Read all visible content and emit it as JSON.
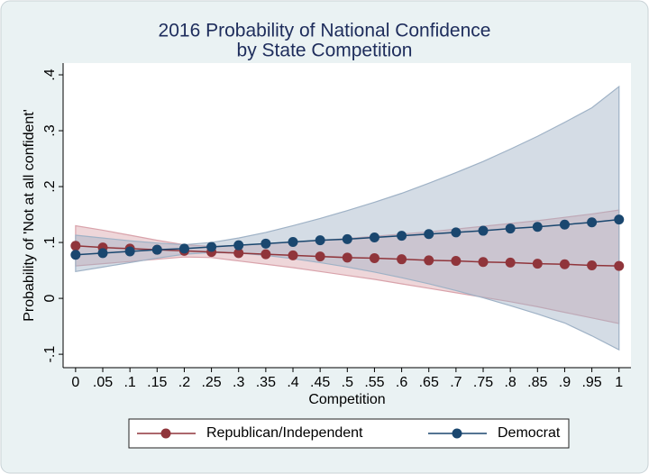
{
  "chart_data": {
    "type": "line",
    "title": [
      "2016 Probability of National Confidence",
      "by State Competition"
    ],
    "x_label": "Competition",
    "y_label": "Probability of 'Not at all confident'",
    "x": [
      0,
      0.05,
      0.1,
      0.15,
      0.2,
      0.25,
      0.3,
      0.35,
      0.4,
      0.45,
      0.5,
      0.55,
      0.6,
      0.65,
      0.7,
      0.75,
      0.8,
      0.85,
      0.9,
      0.95,
      1
    ],
    "xlim": [
      -0.023,
      1.022
    ],
    "xticks": [
      0,
      {
        "value": 0.05,
        "label": ".05"
      },
      {
        "value": 0.1,
        "label": ".1"
      },
      {
        "value": 0.15,
        "label": ".15"
      },
      {
        "value": 0.2,
        "label": ".2"
      },
      {
        "value": 0.25,
        "label": ".25"
      },
      {
        "value": 0.3,
        "label": ".3"
      },
      {
        "value": 0.35,
        "label": ".35"
      },
      {
        "value": 0.4,
        "label": ".4"
      },
      {
        "value": 0.45,
        "label": ".45"
      },
      {
        "value": 0.5,
        "label": ".5"
      },
      {
        "value": 0.55,
        "label": ".55"
      },
      {
        "value": 0.6,
        "label": ".6"
      },
      {
        "value": 0.65,
        "label": ".65"
      },
      {
        "value": 0.7,
        "label": ".7"
      },
      {
        "value": 0.75,
        "label": ".75"
      },
      {
        "value": 0.8,
        "label": ".8"
      },
      {
        "value": 0.85,
        "label": ".85"
      },
      {
        "value": 0.9,
        "label": ".9"
      },
      {
        "value": 0.95,
        "label": ".95"
      },
      1
    ],
    "ylim": [
      -0.124,
      0.421
    ],
    "yticks": [
      {
        "value": -0.1,
        "label": "-.1"
      },
      0,
      {
        "value": 0.1,
        "label": ".1"
      },
      {
        "value": 0.2,
        "label": ".2"
      },
      {
        "value": 0.3,
        "label": ".3"
      },
      {
        "value": 0.4,
        "label": ".4"
      }
    ],
    "grid": false,
    "legend": "bottom",
    "series": [
      {
        "name": "Republican/Independent",
        "color": "#90353b",
        "band_color": "#d9a3ab",
        "values": [
          0.094,
          0.091,
          0.089,
          0.087,
          0.085,
          0.083,
          0.081,
          0.079,
          0.077,
          0.075,
          0.073,
          0.072,
          0.07,
          0.068,
          0.067,
          0.065,
          0.064,
          0.062,
          0.061,
          0.059,
          0.058
        ],
        "ci_upper": [
          0.13,
          0.122,
          0.113,
          0.104,
          0.096,
          0.093,
          0.095,
          0.098,
          0.101,
          0.104,
          0.107,
          0.111,
          0.115,
          0.119,
          0.124,
          0.129,
          0.134,
          0.139,
          0.145,
          0.151,
          0.158
        ],
        "ci_lower": [
          0.058,
          0.062,
          0.066,
          0.07,
          0.074,
          0.073,
          0.067,
          0.061,
          0.055,
          0.048,
          0.041,
          0.034,
          0.026,
          0.018,
          0.01,
          0.002,
          -0.006,
          -0.015,
          -0.025,
          -0.035,
          -0.045
        ]
      },
      {
        "name": "Democrat",
        "color": "#1a476f",
        "band_color": "#9fb2c6",
        "values": [
          0.078,
          0.081,
          0.084,
          0.087,
          0.089,
          0.092,
          0.095,
          0.098,
          0.101,
          0.104,
          0.106,
          0.109,
          0.112,
          0.115,
          0.118,
          0.121,
          0.125,
          0.128,
          0.132,
          0.136,
          0.141
        ],
        "ci_upper": [
          0.113,
          0.108,
          0.103,
          0.099,
          0.096,
          0.1,
          0.108,
          0.118,
          0.13,
          0.143,
          0.157,
          0.172,
          0.188,
          0.206,
          0.225,
          0.245,
          0.267,
          0.29,
          0.315,
          0.341,
          0.379
        ],
        "ci_lower": [
          0.048,
          0.056,
          0.064,
          0.072,
          0.079,
          0.082,
          0.081,
          0.077,
          0.071,
          0.064,
          0.056,
          0.047,
          0.037,
          0.026,
          0.014,
          0.001,
          -0.013,
          -0.028,
          -0.044,
          -0.067,
          -0.092
        ]
      }
    ]
  }
}
